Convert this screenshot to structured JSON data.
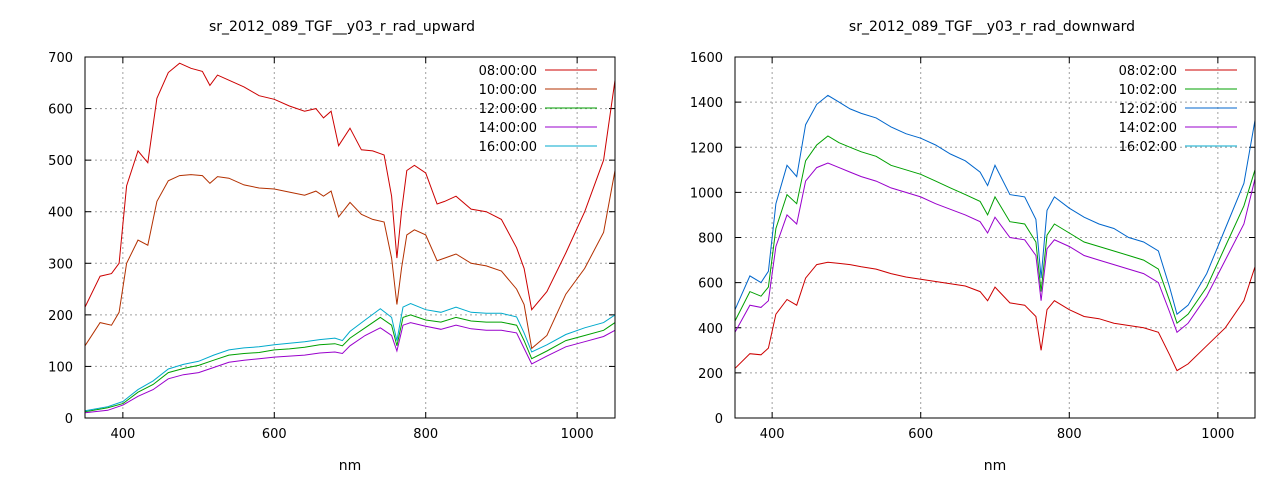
{
  "chart_data": [
    {
      "type": "line",
      "title": "sr_2012_089_TGF__y03_r_rad_upward",
      "xlabel": "nm",
      "ylabel": "",
      "xlim": [
        350,
        1050
      ],
      "ylim": [
        0,
        700
      ],
      "xticks": [
        400,
        600,
        800,
        1000
      ],
      "yticks": [
        0,
        100,
        200,
        300,
        400,
        500,
        600,
        700
      ],
      "grid": true,
      "legend_position": "top-right",
      "series": [
        {
          "name": "08:00:00",
          "color": "#cc0000",
          "x": [
            350,
            370,
            385,
            395,
            405,
            420,
            433,
            445,
            460,
            475,
            490,
            505,
            515,
            525,
            540,
            560,
            580,
            600,
            620,
            640,
            655,
            665,
            675,
            685,
            700,
            715,
            730,
            745,
            755,
            762,
            768,
            775,
            785,
            800,
            815,
            825,
            840,
            860,
            880,
            900,
            920,
            930,
            940,
            960,
            985,
            1010,
            1035,
            1050
          ],
          "y": [
            215,
            275,
            280,
            300,
            450,
            518,
            495,
            620,
            670,
            688,
            678,
            672,
            645,
            665,
            655,
            642,
            625,
            618,
            605,
            595,
            600,
            582,
            595,
            528,
            562,
            520,
            518,
            510,
            430,
            310,
            400,
            480,
            490,
            475,
            415,
            420,
            430,
            405,
            400,
            385,
            330,
            290,
            210,
            245,
            320,
            400,
            500,
            655
          ]
        },
        {
          "name": "10:00:00",
          "color": "#b33000",
          "x": [
            350,
            370,
            385,
            395,
            405,
            420,
            433,
            445,
            460,
            475,
            490,
            505,
            515,
            525,
            540,
            560,
            580,
            600,
            620,
            640,
            655,
            665,
            675,
            685,
            700,
            715,
            730,
            745,
            755,
            762,
            768,
            775,
            785,
            800,
            815,
            825,
            840,
            860,
            880,
            900,
            920,
            930,
            940,
            960,
            985,
            1010,
            1035,
            1050
          ],
          "y": [
            140,
            185,
            180,
            205,
            300,
            345,
            335,
            420,
            460,
            470,
            472,
            470,
            455,
            468,
            465,
            452,
            446,
            444,
            438,
            432,
            440,
            430,
            440,
            390,
            418,
            395,
            385,
            380,
            310,
            220,
            290,
            355,
            365,
            355,
            305,
            310,
            318,
            300,
            295,
            285,
            250,
            220,
            135,
            160,
            240,
            290,
            360,
            480
          ]
        },
        {
          "name": "12:00:00",
          "color": "#00a000",
          "x": [
            350,
            380,
            400,
            420,
            440,
            460,
            480,
            500,
            520,
            540,
            560,
            580,
            600,
            620,
            640,
            660,
            680,
            690,
            700,
            720,
            740,
            755,
            762,
            770,
            780,
            800,
            820,
            840,
            860,
            880,
            900,
            920,
            930,
            940,
            960,
            985,
            1010,
            1035,
            1050
          ],
          "y": [
            12,
            20,
            28,
            50,
            65,
            88,
            96,
            102,
            112,
            122,
            125,
            127,
            132,
            134,
            137,
            142,
            144,
            140,
            155,
            175,
            195,
            180,
            140,
            195,
            200,
            190,
            186,
            195,
            188,
            186,
            186,
            180,
            150,
            115,
            130,
            150,
            160,
            170,
            185
          ]
        },
        {
          "name": "14:00:00",
          "color": "#9900cc",
          "x": [
            350,
            380,
            400,
            420,
            440,
            460,
            480,
            500,
            520,
            540,
            560,
            580,
            600,
            620,
            640,
            660,
            680,
            690,
            700,
            720,
            740,
            755,
            762,
            770,
            780,
            800,
            820,
            840,
            860,
            880,
            900,
            920,
            930,
            940,
            960,
            985,
            1010,
            1035,
            1050
          ],
          "y": [
            10,
            15,
            25,
            42,
            55,
            76,
            84,
            88,
            98,
            108,
            112,
            115,
            118,
            120,
            122,
            126,
            128,
            125,
            140,
            160,
            175,
            160,
            130,
            180,
            185,
            178,
            172,
            180,
            173,
            170,
            170,
            165,
            135,
            105,
            120,
            138,
            148,
            158,
            170
          ]
        },
        {
          "name": "16:00:00",
          "color": "#00aacc",
          "x": [
            350,
            380,
            400,
            420,
            440,
            460,
            480,
            500,
            520,
            540,
            560,
            580,
            600,
            620,
            640,
            660,
            680,
            690,
            700,
            720,
            740,
            755,
            762,
            770,
            780,
            800,
            820,
            840,
            860,
            880,
            900,
            920,
            930,
            940,
            960,
            985,
            1010,
            1035,
            1050
          ],
          "y": [
            14,
            22,
            32,
            55,
            72,
            95,
            104,
            110,
            122,
            132,
            136,
            138,
            142,
            145,
            148,
            152,
            155,
            150,
            168,
            190,
            212,
            195,
            150,
            215,
            222,
            210,
            205,
            215,
            205,
            203,
            203,
            196,
            165,
            128,
            142,
            162,
            175,
            185,
            200
          ]
        }
      ]
    },
    {
      "type": "line",
      "title": "sr_2012_089_TGF__y03_r_rad_downward",
      "xlabel": "nm",
      "ylabel": "",
      "xlim": [
        350,
        1050
      ],
      "ylim": [
        0,
        1600
      ],
      "xticks": [
        400,
        600,
        800,
        1000
      ],
      "yticks": [
        0,
        200,
        400,
        600,
        800,
        1000,
        1200,
        1400,
        1600
      ],
      "grid": true,
      "legend_position": "top-right",
      "series": [
        {
          "name": "08:02:00",
          "color": "#cc0000",
          "x": [
            350,
            370,
            385,
            395,
            405,
            420,
            433,
            445,
            460,
            475,
            490,
            505,
            520,
            540,
            560,
            580,
            600,
            620,
            640,
            660,
            680,
            690,
            700,
            720,
            740,
            755,
            762,
            770,
            780,
            800,
            820,
            840,
            860,
            880,
            900,
            920,
            935,
            945,
            960,
            985,
            1010,
            1035,
            1050
          ],
          "y": [
            220,
            285,
            280,
            310,
            460,
            525,
            500,
            620,
            680,
            690,
            685,
            680,
            670,
            660,
            640,
            625,
            615,
            605,
            595,
            585,
            560,
            520,
            580,
            510,
            500,
            450,
            300,
            480,
            520,
            480,
            450,
            440,
            420,
            410,
            400,
            380,
            280,
            210,
            240,
            320,
            400,
            520,
            670
          ]
        },
        {
          "name": "10:02:00",
          "color": "#00a000",
          "x": [
            350,
            370,
            385,
            395,
            405,
            420,
            433,
            445,
            460,
            475,
            490,
            505,
            520,
            540,
            560,
            580,
            600,
            620,
            640,
            660,
            680,
            690,
            700,
            720,
            740,
            755,
            762,
            770,
            780,
            800,
            820,
            840,
            860,
            880,
            900,
            920,
            935,
            945,
            960,
            985,
            1010,
            1035,
            1050
          ],
          "y": [
            430,
            560,
            540,
            580,
            840,
            990,
            950,
            1140,
            1210,
            1250,
            1220,
            1200,
            1180,
            1160,
            1120,
            1100,
            1080,
            1050,
            1020,
            990,
            960,
            900,
            980,
            870,
            860,
            780,
            560,
            810,
            860,
            820,
            780,
            760,
            740,
            720,
            700,
            660,
            520,
            420,
            460,
            580,
            760,
            940,
            1100
          ]
        },
        {
          "name": "12:02:00",
          "color": "#0066cc",
          "x": [
            350,
            370,
            385,
            395,
            405,
            420,
            433,
            445,
            460,
            475,
            490,
            505,
            520,
            540,
            560,
            580,
            600,
            620,
            640,
            660,
            680,
            690,
            700,
            720,
            740,
            755,
            762,
            770,
            780,
            800,
            820,
            840,
            860,
            880,
            900,
            920,
            935,
            945,
            960,
            985,
            1010,
            1035,
            1050
          ],
          "y": [
            480,
            630,
            600,
            650,
            950,
            1120,
            1070,
            1300,
            1390,
            1430,
            1400,
            1370,
            1350,
            1330,
            1290,
            1260,
            1240,
            1210,
            1170,
            1140,
            1090,
            1030,
            1120,
            990,
            980,
            880,
            620,
            920,
            980,
            930,
            890,
            860,
            840,
            800,
            780,
            740,
            580,
            460,
            500,
            640,
            840,
            1040,
            1320
          ]
        },
        {
          "name": "14:02:00",
          "color": "#9900cc",
          "x": [
            350,
            370,
            385,
            395,
            405,
            420,
            433,
            445,
            460,
            475,
            490,
            505,
            520,
            540,
            560,
            580,
            600,
            620,
            640,
            660,
            680,
            690,
            700,
            720,
            740,
            755,
            762,
            770,
            780,
            800,
            820,
            840,
            860,
            880,
            900,
            920,
            935,
            945,
            960,
            985,
            1010,
            1035,
            1050
          ],
          "y": [
            380,
            500,
            490,
            520,
            760,
            900,
            860,
            1050,
            1110,
            1130,
            1110,
            1090,
            1070,
            1050,
            1020,
            1000,
            980,
            950,
            925,
            900,
            870,
            820,
            890,
            800,
            790,
            720,
            520,
            750,
            790,
            760,
            720,
            700,
            680,
            660,
            640,
            600,
            470,
            380,
            420,
            540,
            700,
            860,
            1060
          ]
        },
        {
          "name": "16:02:00",
          "color": "#00aacc",
          "x": [],
          "y": []
        }
      ]
    }
  ]
}
